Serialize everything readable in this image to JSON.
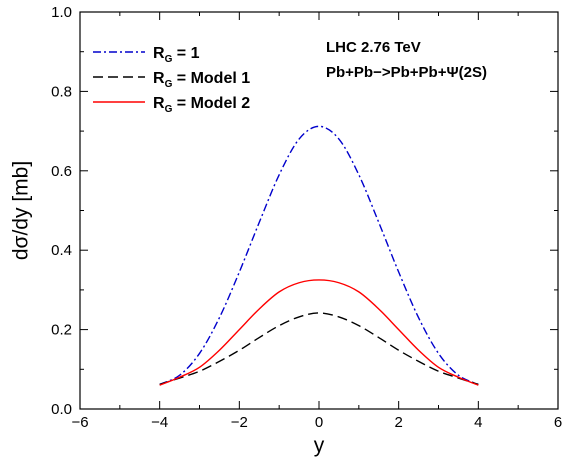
{
  "chart_data": {
    "type": "line",
    "title": "",
    "xlabel": "y",
    "ylabel": "dσ/dy [mb]",
    "xlim": [
      -6,
      6
    ],
    "ylim": [
      0.0,
      1.0
    ],
    "x_ticks": [
      -6,
      -4,
      -2,
      0,
      2,
      4,
      6
    ],
    "x_tick_labels": [
      "−6",
      "−4",
      "−2",
      "0",
      "2",
      "4",
      "6"
    ],
    "y_ticks": [
      0.0,
      0.2,
      0.4,
      0.6,
      0.8,
      1.0
    ],
    "y_tick_labels": [
      "0.0",
      "0.2",
      "0.4",
      "0.6",
      "0.8",
      "1.0"
    ],
    "grid": false,
    "legend_placement": "top-left",
    "annotations": [
      "LHC 2.76 TeV",
      "Pb+Pb−>Pb+Pb+Ψ(2S)"
    ],
    "x": [
      -4.0,
      -3.5,
      -3.0,
      -2.5,
      -2.0,
      -1.5,
      -1.0,
      -0.5,
      0.0,
      0.5,
      1.0,
      1.5,
      2.0,
      2.5,
      3.0,
      3.5,
      4.0
    ],
    "series": [
      {
        "label_main": "R",
        "label_sub": "G",
        "label_rest": " = 1",
        "color": "#0000cc",
        "dash": "8,3,2,3",
        "values": [
          0.062,
          0.085,
          0.14,
          0.23,
          0.345,
          0.47,
          0.59,
          0.68,
          0.712,
          0.68,
          0.59,
          0.47,
          0.345,
          0.23,
          0.14,
          0.085,
          0.062
        ]
      },
      {
        "label_main": "R",
        "label_sub": "G",
        "label_rest": " = Model 1",
        "color": "#000000",
        "dash": "10,5",
        "values": [
          0.062,
          0.078,
          0.095,
          0.12,
          0.148,
          0.18,
          0.21,
          0.232,
          0.242,
          0.232,
          0.21,
          0.18,
          0.148,
          0.12,
          0.095,
          0.078,
          0.062
        ]
      },
      {
        "label_main": "R",
        "label_sub": "G",
        "label_rest": " = Model 2",
        "color": "#ff0000",
        "dash": "",
        "values": [
          0.06,
          0.08,
          0.105,
          0.148,
          0.2,
          0.252,
          0.295,
          0.318,
          0.325,
          0.318,
          0.295,
          0.252,
          0.2,
          0.148,
          0.105,
          0.08,
          0.06
        ]
      }
    ]
  }
}
